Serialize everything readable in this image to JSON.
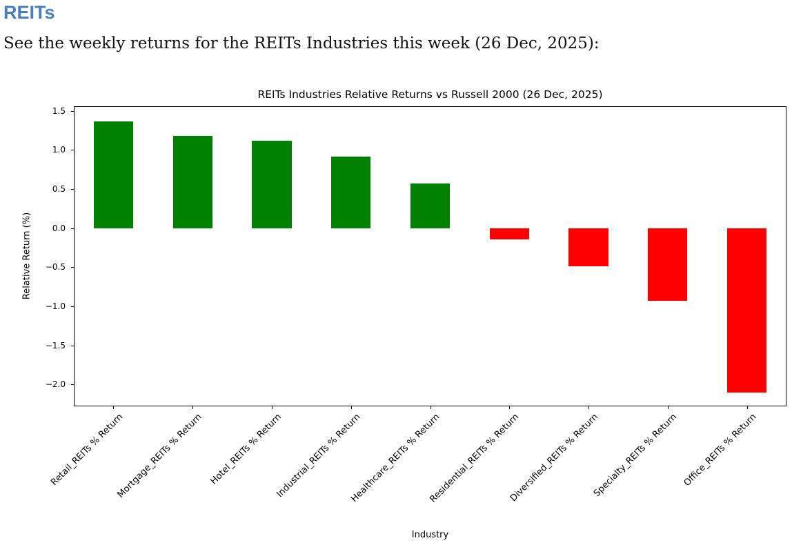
{
  "page": {
    "heading": "REITs",
    "subtitle": "See the weekly returns for the REITs Industries this week (26 Dec, 2025):"
  },
  "colors": {
    "heading_blue": "#4a7ebc",
    "positive_green": "#008000",
    "negative_red": "#ff0000",
    "axis_black": "#000000"
  },
  "chart_data": {
    "type": "bar",
    "title": "REITs Industries Relative Returns vs Russell 2000 (26 Dec, 2025)",
    "xlabel": "Industry",
    "ylabel": "Relative Return (%)",
    "ylim": [
      -2.28,
      1.56
    ],
    "yticks": [
      1.5,
      1.0,
      0.5,
      0.0,
      -0.5,
      -1.0,
      -1.5,
      -2.0
    ],
    "grid": false,
    "legend": false,
    "bar_width_fraction": 0.5,
    "x_tick_rotation_deg": 45,
    "categories": [
      "Retail_REITs % Return",
      "Mortgage_REITs % Return",
      "Hotel_REITs % Return",
      "Industrial_REITs % Return",
      "Healthcare_REITs % Return",
      "Residential_REITs % Return",
      "Diversified_REITs % Return",
      "Specialty_REITs % Return",
      "Office_REITs % Return"
    ],
    "values": [
      1.37,
      1.18,
      1.12,
      0.92,
      0.57,
      -0.14,
      -0.49,
      -0.93,
      -2.1
    ],
    "positive_color": "#008000",
    "negative_color": "#ff0000"
  }
}
